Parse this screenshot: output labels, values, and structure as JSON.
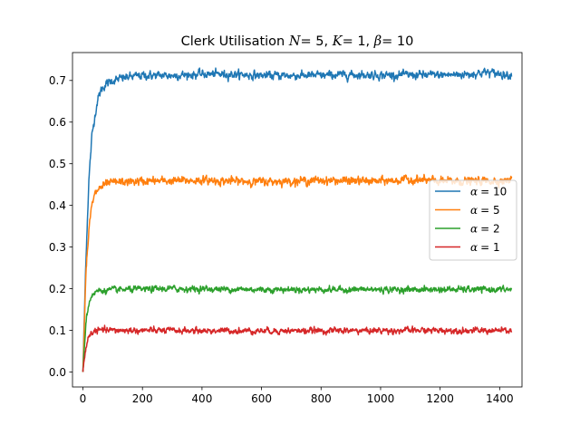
{
  "chart_data": {
    "type": "line",
    "title": {
      "prefix": "Clerk Utilisation ",
      "n_symbol": "N",
      "n_value": "= 5, ",
      "k_symbol": "K",
      "k_value": "= 1, ",
      "beta_symbol": "β",
      "beta_value": "= 10"
    },
    "xlabel": "",
    "ylabel": "",
    "xlim": [
      -35,
      1475
    ],
    "ylim": [
      -0.036,
      0.767
    ],
    "x_ticks": [
      0,
      200,
      400,
      600,
      800,
      1000,
      1200,
      1400
    ],
    "x_tick_labels": [
      "0",
      "200",
      "400",
      "600",
      "800",
      "1000",
      "1200",
      "1400"
    ],
    "y_ticks": [
      0.0,
      0.1,
      0.2,
      0.3,
      0.4,
      0.5,
      0.6,
      0.7
    ],
    "y_tick_labels": [
      "0.0",
      "0.1",
      "0.2",
      "0.3",
      "0.4",
      "0.5",
      "0.6",
      "0.7"
    ],
    "grid": false,
    "legend_position": "center-right",
    "x_range": [
      0,
      1440
    ],
    "series": [
      {
        "name": "α = 10",
        "legend_symbol": "α",
        "legend_value": "= 10",
        "color": "#1f77b4",
        "rise_time": 35,
        "plateau": 0.714,
        "noise": 0.004,
        "points": [
          [
            0,
            0.0
          ],
          [
            10,
            0.27
          ],
          [
            20,
            0.46
          ],
          [
            30,
            0.565
          ],
          [
            40,
            0.615
          ],
          [
            50,
            0.655
          ],
          [
            60,
            0.675
          ],
          [
            75,
            0.69
          ],
          [
            100,
            0.7
          ],
          [
            150,
            0.708
          ],
          [
            200,
            0.712
          ],
          [
            300,
            0.712
          ],
          [
            400,
            0.715
          ],
          [
            500,
            0.715
          ],
          [
            600,
            0.712
          ],
          [
            700,
            0.712
          ],
          [
            800,
            0.712
          ],
          [
            900,
            0.714
          ],
          [
            1000,
            0.713
          ],
          [
            1100,
            0.713
          ],
          [
            1200,
            0.713
          ],
          [
            1300,
            0.715
          ],
          [
            1350,
            0.72
          ],
          [
            1440,
            0.713
          ]
        ]
      },
      {
        "name": "α = 5",
        "legend_symbol": "α",
        "legend_value": "= 5",
        "color": "#ff7f0e",
        "rise_time": 22,
        "plateau": 0.458,
        "noise": 0.004,
        "points": [
          [
            0,
            0.0
          ],
          [
            10,
            0.24
          ],
          [
            20,
            0.34
          ],
          [
            30,
            0.4
          ],
          [
            40,
            0.425
          ],
          [
            50,
            0.438
          ],
          [
            75,
            0.45
          ],
          [
            100,
            0.455
          ],
          [
            200,
            0.458
          ],
          [
            400,
            0.46
          ],
          [
            600,
            0.457
          ],
          [
            800,
            0.46
          ],
          [
            1000,
            0.458
          ],
          [
            1100,
            0.462
          ],
          [
            1200,
            0.458
          ],
          [
            1300,
            0.458
          ],
          [
            1440,
            0.46
          ]
        ]
      },
      {
        "name": "α = 2",
        "legend_symbol": "α",
        "legend_value": "= 2",
        "color": "#2ca02c",
        "rise_time": 15,
        "plateau": 0.198,
        "noise": 0.003,
        "points": [
          [
            0,
            0.0
          ],
          [
            10,
            0.12
          ],
          [
            20,
            0.165
          ],
          [
            30,
            0.185
          ],
          [
            50,
            0.195
          ],
          [
            100,
            0.197
          ],
          [
            300,
            0.2
          ],
          [
            600,
            0.198
          ],
          [
            900,
            0.198
          ],
          [
            1200,
            0.198
          ],
          [
            1440,
            0.198
          ]
        ]
      },
      {
        "name": "α = 1",
        "legend_symbol": "α",
        "legend_value": "= 1",
        "color": "#d62728",
        "rise_time": 14,
        "plateau": 0.099,
        "noise": 0.003,
        "points": [
          [
            0,
            0.0
          ],
          [
            10,
            0.06
          ],
          [
            20,
            0.085
          ],
          [
            30,
            0.095
          ],
          [
            50,
            0.1
          ],
          [
            100,
            0.1
          ],
          [
            400,
            0.099
          ],
          [
            800,
            0.099
          ],
          [
            1200,
            0.1
          ],
          [
            1440,
            0.099
          ]
        ]
      }
    ]
  }
}
